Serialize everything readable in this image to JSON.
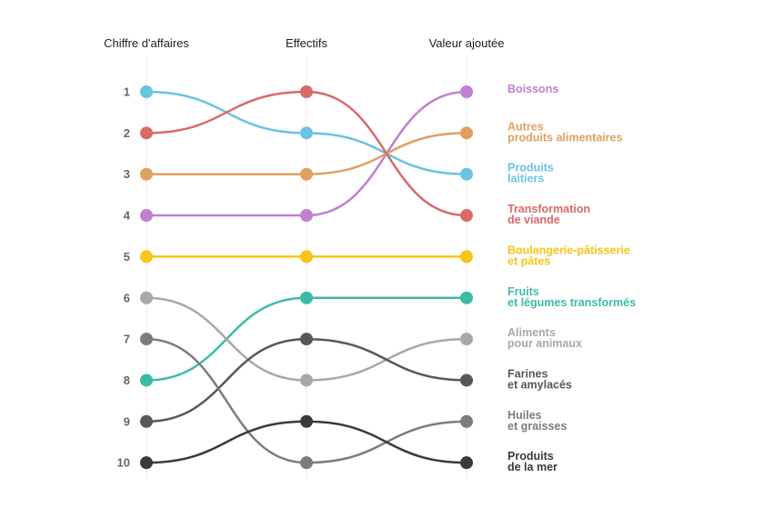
{
  "chart_data": {
    "type": "line",
    "title": "",
    "columns": [
      "Chiffre d'affaires",
      "Effectifs",
      "Valeur ajoutée"
    ],
    "ranks": [
      "1",
      "2",
      "3",
      "4",
      "5",
      "6",
      "7",
      "8",
      "9",
      "10"
    ],
    "ylim": [
      1,
      10
    ],
    "y_inverted": true,
    "grid": true,
    "series": [
      {
        "name": "Boissons",
        "label_lines": [
          "Boissons"
        ],
        "values": [
          4,
          4,
          1
        ],
        "color": "#c07fd0"
      },
      {
        "name": "Autres produits alimentaires",
        "label_lines": [
          "Autres",
          "produits alimentaires"
        ],
        "values": [
          3,
          3,
          2
        ],
        "color": "#e0a060"
      },
      {
        "name": "Produits laitiers",
        "label_lines": [
          "Produits",
          "laitiers"
        ],
        "values": [
          1,
          2,
          3
        ],
        "color": "#6cc2e0"
      },
      {
        "name": "Transformation de viande",
        "label_lines": [
          "Transformation",
          "de viande"
        ],
        "values": [
          2,
          1,
          4
        ],
        "color": "#d96a6a"
      },
      {
        "name": "Boulangerie-pâtisserie et pâtes",
        "label_lines": [
          "Boulangerie-pâtisserie",
          "et pâtes"
        ],
        "values": [
          5,
          5,
          5
        ],
        "color": "#f5c518"
      },
      {
        "name": "Fruits et légumes transformés",
        "label_lines": [
          "Fruits",
          "et légumes transformés"
        ],
        "values": [
          8,
          6,
          6
        ],
        "color": "#3dbba7"
      },
      {
        "name": "Aliments pour animaux",
        "label_lines": [
          "Aliments",
          "pour animaux"
        ],
        "values": [
          6,
          8,
          7
        ],
        "color": "#a8a8a8"
      },
      {
        "name": "Farines et amylacés",
        "label_lines": [
          "Farines",
          "et amylacés"
        ],
        "values": [
          9,
          7,
          8
        ],
        "color": "#585858"
      },
      {
        "name": "Huiles et graisses",
        "label_lines": [
          "Huiles",
          "et graisses"
        ],
        "values": [
          7,
          10,
          9
        ],
        "color": "#7c7c7c"
      },
      {
        "name": "Produits de la mer",
        "label_lines": [
          "Produits",
          "de la mer"
        ],
        "values": [
          10,
          9,
          10
        ],
        "color": "#3a3a3a"
      }
    ]
  }
}
